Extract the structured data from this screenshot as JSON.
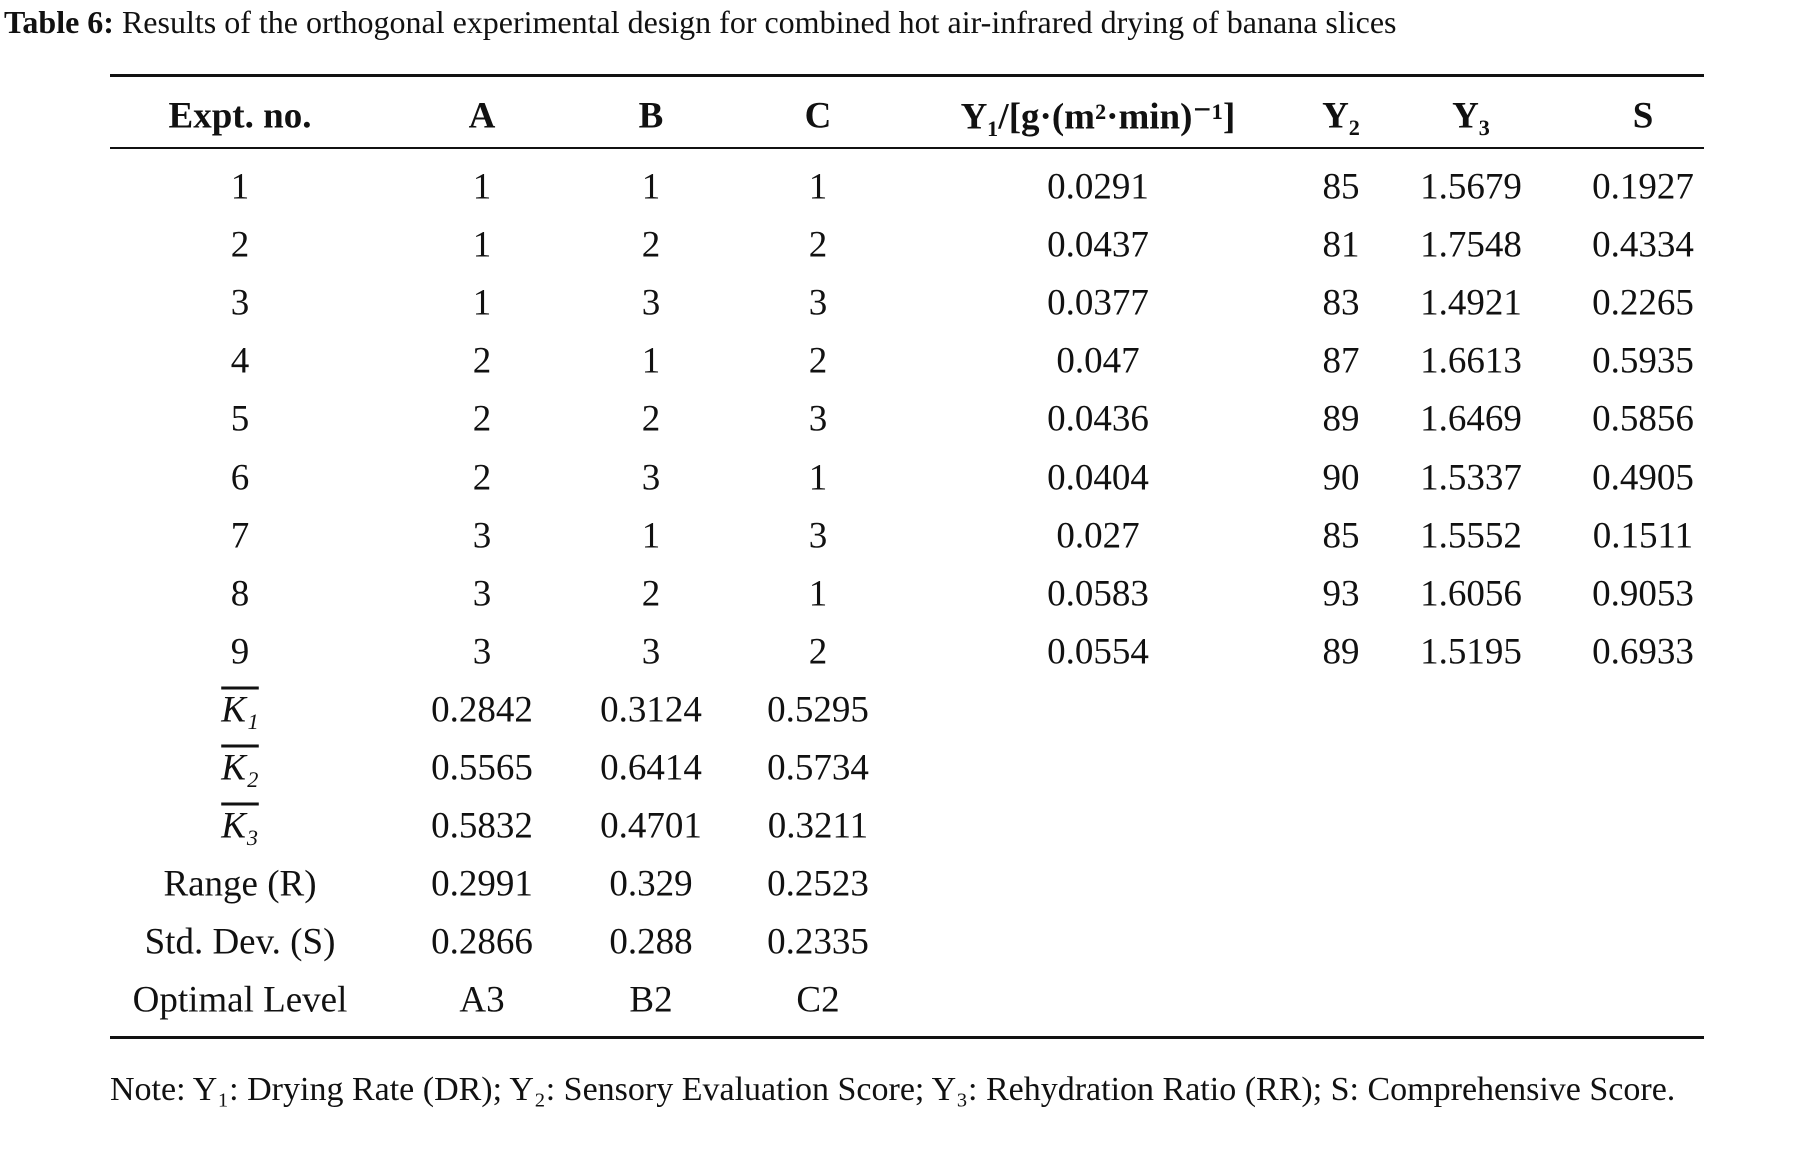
{
  "caption": {
    "label": "Table 6:",
    "text": "Results of the orthogonal experimental design for combined hot air-infrared drying of banana slices"
  },
  "table": {
    "header": [
      "Expt. no.",
      "A",
      "B",
      "C",
      "Y₁/[g·(m²·min)⁻¹]",
      "Y₂",
      "Y₃",
      "S"
    ],
    "rows": [
      [
        "1",
        "1",
        "1",
        "1",
        "0.0291",
        "85",
        "1.5679",
        "0.1927"
      ],
      [
        "2",
        "1",
        "2",
        "2",
        "0.0437",
        "81",
        "1.7548",
        "0.4334"
      ],
      [
        "3",
        "1",
        "3",
        "3",
        "0.0377",
        "83",
        "1.4921",
        "0.2265"
      ],
      [
        "4",
        "2",
        "1",
        "2",
        "0.047",
        "87",
        "1.6613",
        "0.5935"
      ],
      [
        "5",
        "2",
        "2",
        "3",
        "0.0436",
        "89",
        "1.6469",
        "0.5856"
      ],
      [
        "6",
        "2",
        "3",
        "1",
        "0.0404",
        "90",
        "1.5337",
        "0.4905"
      ],
      [
        "7",
        "3",
        "1",
        "3",
        "0.027",
        "85",
        "1.5552",
        "0.1511"
      ],
      [
        "8",
        "3",
        "2",
        "1",
        "0.0583",
        "93",
        "1.6056",
        "0.9053"
      ],
      [
        "9",
        "3",
        "3",
        "2",
        "0.0554",
        "89",
        "1.5195",
        "0.6933"
      ],
      [
        "K₁",
        "0.2842",
        "0.3124",
        "0.5295"
      ],
      [
        "K₂",
        "0.5565",
        "0.6414",
        "0.5734"
      ],
      [
        "K₃",
        "0.5832",
        "0.4701",
        "0.3211"
      ],
      [
        "Range (R)",
        "0.2991",
        "0.329",
        "0.2523"
      ],
      [
        "Std. Dev. (S)",
        "0.2866",
        "0.288",
        "0.2335"
      ],
      [
        "Optimal Level",
        "A3",
        "B2",
        "C2"
      ]
    ]
  },
  "note": "Note: Y₁: Drying Rate (DR); Y₂: Sensory Evaluation Score; Y₃: Rehydration Ratio (RR); S: Comprehensive Score."
}
